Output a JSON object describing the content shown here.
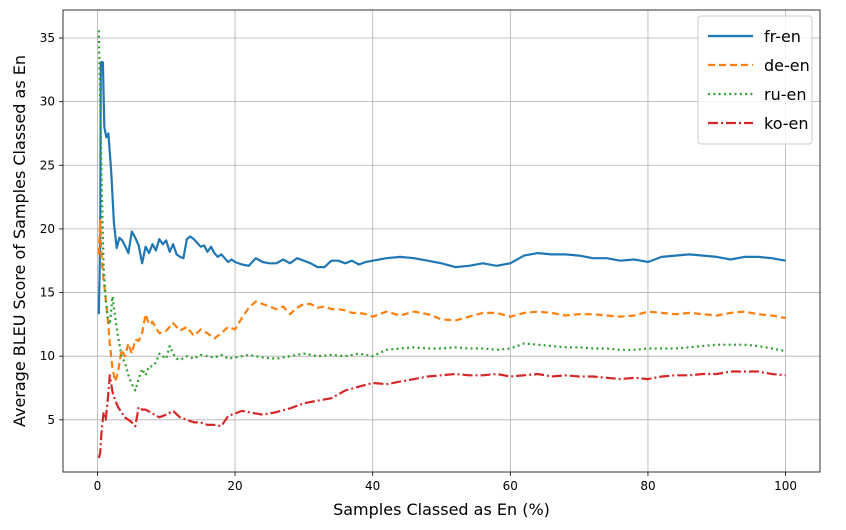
{
  "chart_data": {
    "type": "line",
    "title": "",
    "xlabel": "Samples Classed as En (%)",
    "ylabel": "Average BLEU Score of Samples Classed as En",
    "xlim": [
      -5,
      105
    ],
    "ylim": [
      0.9,
      37.2
    ],
    "xticks": [
      0,
      20,
      40,
      60,
      80,
      100
    ],
    "yticks": [
      5,
      10,
      15,
      20,
      25,
      30,
      35
    ],
    "grid": true,
    "legend_position": "top-right",
    "series": [
      {
        "name": "fr-en",
        "color": "#1f77b4",
        "dash": "solid",
        "points": [
          [
            0.2,
            13.3
          ],
          [
            0.4,
            19
          ],
          [
            0.5,
            33.1
          ],
          [
            0.8,
            33.1
          ],
          [
            1,
            28
          ],
          [
            1.3,
            27.2
          ],
          [
            1.6,
            27.5
          ],
          [
            2,
            24.5
          ],
          [
            2.4,
            20.5
          ],
          [
            2.8,
            18.5
          ],
          [
            3.2,
            19.3
          ],
          [
            3.6,
            19.1
          ],
          [
            4,
            18.7
          ],
          [
            4.5,
            18.1
          ],
          [
            5,
            19.8
          ],
          [
            5.5,
            19.3
          ],
          [
            6,
            18.7
          ],
          [
            6.5,
            17.3
          ],
          [
            7,
            18.6
          ],
          [
            7.5,
            18.1
          ],
          [
            8,
            18.8
          ],
          [
            8.5,
            18.3
          ],
          [
            9,
            19.2
          ],
          [
            9.5,
            18.8
          ],
          [
            10,
            19.1
          ],
          [
            10.5,
            18.2
          ],
          [
            11,
            18.8
          ],
          [
            11.5,
            18
          ],
          [
            12,
            17.8
          ],
          [
            12.5,
            17.7
          ],
          [
            13,
            19.2
          ],
          [
            13.5,
            19.4
          ],
          [
            14,
            19.2
          ],
          [
            14.5,
            18.9
          ],
          [
            15,
            18.6
          ],
          [
            15.5,
            18.7
          ],
          [
            16,
            18.2
          ],
          [
            16.5,
            18.6
          ],
          [
            17,
            18.1
          ],
          [
            17.5,
            17.8
          ],
          [
            18,
            18
          ],
          [
            18.5,
            17.7
          ],
          [
            19,
            17.4
          ],
          [
            19.5,
            17.6
          ],
          [
            20,
            17.4
          ],
          [
            21,
            17.2
          ],
          [
            22,
            17.1
          ],
          [
            23,
            17.7
          ],
          [
            24,
            17.4
          ],
          [
            25,
            17.3
          ],
          [
            26,
            17.3
          ],
          [
            27,
            17.6
          ],
          [
            28,
            17.3
          ],
          [
            29,
            17.7
          ],
          [
            30,
            17.5
          ],
          [
            31,
            17.3
          ],
          [
            32,
            17
          ],
          [
            33,
            17
          ],
          [
            34,
            17.5
          ],
          [
            35,
            17.5
          ],
          [
            36,
            17.3
          ],
          [
            37,
            17.5
          ],
          [
            38,
            17.2
          ],
          [
            39,
            17.4
          ],
          [
            40,
            17.5
          ],
          [
            42,
            17.7
          ],
          [
            44,
            17.8
          ],
          [
            46,
            17.7
          ],
          [
            48,
            17.5
          ],
          [
            50,
            17.3
          ],
          [
            52,
            17
          ],
          [
            54,
            17.1
          ],
          [
            56,
            17.3
          ],
          [
            58,
            17.1
          ],
          [
            60,
            17.3
          ],
          [
            62,
            17.9
          ],
          [
            64,
            18.1
          ],
          [
            66,
            18
          ],
          [
            68,
            18
          ],
          [
            70,
            17.9
          ],
          [
            72,
            17.7
          ],
          [
            74,
            17.7
          ],
          [
            76,
            17.5
          ],
          [
            78,
            17.6
          ],
          [
            80,
            17.4
          ],
          [
            82,
            17.8
          ],
          [
            84,
            17.9
          ],
          [
            86,
            18
          ],
          [
            88,
            17.9
          ],
          [
            90,
            17.8
          ],
          [
            92,
            17.6
          ],
          [
            94,
            17.8
          ],
          [
            96,
            17.8
          ],
          [
            98,
            17.7
          ],
          [
            100,
            17.5
          ]
        ]
      },
      {
        "name": "de-en",
        "color": "#ff7f0e",
        "dash": "dashed",
        "points": [
          [
            0.2,
            18
          ],
          [
            0.4,
            20.7
          ],
          [
            0.6,
            17.8
          ],
          [
            0.9,
            16
          ],
          [
            1.2,
            14.5
          ],
          [
            1.5,
            13
          ],
          [
            1.8,
            11
          ],
          [
            2.2,
            9
          ],
          [
            2.6,
            8
          ],
          [
            3,
            8.8
          ],
          [
            3.5,
            10.5
          ],
          [
            4,
            10
          ],
          [
            4.5,
            11
          ],
          [
            5,
            10.2
          ],
          [
            5.5,
            11.3
          ],
          [
            6,
            11.2
          ],
          [
            6.5,
            11.8
          ],
          [
            7,
            13.3
          ],
          [
            7.5,
            12.5
          ],
          [
            8,
            12.7
          ],
          [
            9,
            11.8
          ],
          [
            10,
            12
          ],
          [
            11,
            12.6
          ],
          [
            12,
            12
          ],
          [
            13,
            12.3
          ],
          [
            14,
            11.6
          ],
          [
            15,
            12.1
          ],
          [
            16,
            11.8
          ],
          [
            17,
            11.4
          ],
          [
            18,
            11.8
          ],
          [
            19,
            12.3
          ],
          [
            20,
            12.1
          ],
          [
            21,
            13
          ],
          [
            22,
            13.8
          ],
          [
            23,
            14.3
          ],
          [
            24,
            14.1
          ],
          [
            25,
            13.9
          ],
          [
            26,
            13.7
          ],
          [
            27,
            13.9
          ],
          [
            28,
            13.3
          ],
          [
            29,
            13.8
          ],
          [
            30,
            14.1
          ],
          [
            31,
            14.1
          ],
          [
            32,
            13.8
          ],
          [
            33,
            13.9
          ],
          [
            34,
            13.7
          ],
          [
            35,
            13.7
          ],
          [
            36,
            13.6
          ],
          [
            37,
            13.4
          ],
          [
            38,
            13.4
          ],
          [
            39,
            13.3
          ],
          [
            40,
            13.1
          ],
          [
            42,
            13.5
          ],
          [
            44,
            13.2
          ],
          [
            46,
            13.5
          ],
          [
            48,
            13.3
          ],
          [
            50,
            12.9
          ],
          [
            52,
            12.8
          ],
          [
            54,
            13.1
          ],
          [
            56,
            13.4
          ],
          [
            58,
            13.4
          ],
          [
            60,
            13.1
          ],
          [
            62,
            13.4
          ],
          [
            64,
            13.5
          ],
          [
            66,
            13.4
          ],
          [
            68,
            13.2
          ],
          [
            70,
            13.3
          ],
          [
            72,
            13.3
          ],
          [
            74,
            13.2
          ],
          [
            76,
            13.1
          ],
          [
            78,
            13.2
          ],
          [
            80,
            13.5
          ],
          [
            82,
            13.4
          ],
          [
            84,
            13.3
          ],
          [
            86,
            13.4
          ],
          [
            88,
            13.3
          ],
          [
            90,
            13.2
          ],
          [
            92,
            13.4
          ],
          [
            94,
            13.5
          ],
          [
            96,
            13.3
          ],
          [
            98,
            13.2
          ],
          [
            100,
            13
          ]
        ]
      },
      {
        "name": "ru-en",
        "color": "#2ca02c",
        "dash": "dotted",
        "points": [
          [
            0.2,
            35.6
          ],
          [
            0.4,
            30
          ],
          [
            0.6,
            24
          ],
          [
            0.9,
            17
          ],
          [
            1.2,
            14.5
          ],
          [
            1.5,
            13
          ],
          [
            1.8,
            12.5
          ],
          [
            2.2,
            14.7
          ],
          [
            2.6,
            13
          ],
          [
            3,
            11.5
          ],
          [
            3.5,
            10
          ],
          [
            4,
            9.5
          ],
          [
            4.5,
            8.5
          ],
          [
            5,
            7.8
          ],
          [
            5.5,
            7.3
          ],
          [
            6,
            8.2
          ],
          [
            6.5,
            9
          ],
          [
            7,
            8.5
          ],
          [
            7.5,
            9.2
          ],
          [
            8,
            9.2
          ],
          [
            8.5,
            9.5
          ],
          [
            9,
            10.2
          ],
          [
            9.5,
            10
          ],
          [
            10,
            9.8
          ],
          [
            10.5,
            10.8
          ],
          [
            11,
            10.2
          ],
          [
            11.5,
            9.8
          ],
          [
            12,
            9.7
          ],
          [
            13,
            10
          ],
          [
            14,
            9.8
          ],
          [
            15,
            10.1
          ],
          [
            16,
            10
          ],
          [
            17,
            9.9
          ],
          [
            18,
            10.1
          ],
          [
            19,
            9.8
          ],
          [
            20,
            9.9
          ],
          [
            22,
            10.1
          ],
          [
            24,
            9.9
          ],
          [
            26,
            9.8
          ],
          [
            28,
            10
          ],
          [
            30,
            10.2
          ],
          [
            32,
            10
          ],
          [
            34,
            10.1
          ],
          [
            36,
            10
          ],
          [
            38,
            10.2
          ],
          [
            40,
            10
          ],
          [
            42,
            10.5
          ],
          [
            44,
            10.6
          ],
          [
            46,
            10.7
          ],
          [
            48,
            10.6
          ],
          [
            50,
            10.6
          ],
          [
            52,
            10.7
          ],
          [
            54,
            10.6
          ],
          [
            56,
            10.6
          ],
          [
            58,
            10.5
          ],
          [
            60,
            10.6
          ],
          [
            62,
            11
          ],
          [
            64,
            10.9
          ],
          [
            66,
            10.8
          ],
          [
            68,
            10.7
          ],
          [
            70,
            10.7
          ],
          [
            72,
            10.6
          ],
          [
            74,
            10.6
          ],
          [
            76,
            10.5
          ],
          [
            78,
            10.5
          ],
          [
            80,
            10.6
          ],
          [
            82,
            10.6
          ],
          [
            84,
            10.6
          ],
          [
            86,
            10.7
          ],
          [
            88,
            10.8
          ],
          [
            90,
            10.9
          ],
          [
            92,
            10.9
          ],
          [
            94,
            10.9
          ],
          [
            96,
            10.8
          ],
          [
            98,
            10.6
          ],
          [
            100,
            10.4
          ]
        ]
      },
      {
        "name": "ko-en",
        "color": "#d62728",
        "dash": "dashdot",
        "points": [
          [
            0.2,
            2
          ],
          [
            0.4,
            2.4
          ],
          [
            0.6,
            4
          ],
          [
            0.9,
            5.6
          ],
          [
            1.2,
            5
          ],
          [
            1.5,
            6.5
          ],
          [
            1.8,
            8.5
          ],
          [
            2.2,
            7.2
          ],
          [
            2.6,
            6.5
          ],
          [
            3,
            6
          ],
          [
            3.5,
            5.6
          ],
          [
            4,
            5.2
          ],
          [
            4.5,
            5
          ],
          [
            5,
            4.8
          ],
          [
            5.5,
            4.5
          ],
          [
            6,
            6
          ],
          [
            6.5,
            5.8
          ],
          [
            7,
            5.8
          ],
          [
            8,
            5.5
          ],
          [
            9,
            5.2
          ],
          [
            10,
            5.4
          ],
          [
            11,
            5.7
          ],
          [
            12,
            5.2
          ],
          [
            13,
            5
          ],
          [
            14,
            4.8
          ],
          [
            15,
            4.8
          ],
          [
            16,
            4.6
          ],
          [
            17,
            4.6
          ],
          [
            18,
            4.5
          ],
          [
            19,
            5.3
          ],
          [
            20,
            5.5
          ],
          [
            21,
            5.7
          ],
          [
            22,
            5.6
          ],
          [
            24,
            5.4
          ],
          [
            26,
            5.6
          ],
          [
            28,
            5.9
          ],
          [
            30,
            6.3
          ],
          [
            32,
            6.5
          ],
          [
            34,
            6.7
          ],
          [
            36,
            7.3
          ],
          [
            38,
            7.6
          ],
          [
            40,
            7.9
          ],
          [
            42,
            7.8
          ],
          [
            44,
            8
          ],
          [
            46,
            8.2
          ],
          [
            48,
            8.4
          ],
          [
            50,
            8.5
          ],
          [
            52,
            8.6
          ],
          [
            54,
            8.5
          ],
          [
            56,
            8.5
          ],
          [
            58,
            8.6
          ],
          [
            60,
            8.4
          ],
          [
            62,
            8.5
          ],
          [
            64,
            8.6
          ],
          [
            66,
            8.4
          ],
          [
            68,
            8.5
          ],
          [
            70,
            8.4
          ],
          [
            72,
            8.4
          ],
          [
            74,
            8.3
          ],
          [
            76,
            8.2
          ],
          [
            78,
            8.3
          ],
          [
            80,
            8.2
          ],
          [
            82,
            8.4
          ],
          [
            84,
            8.5
          ],
          [
            86,
            8.5
          ],
          [
            88,
            8.6
          ],
          [
            90,
            8.6
          ],
          [
            92,
            8.8
          ],
          [
            94,
            8.8
          ],
          [
            96,
            8.8
          ],
          [
            98,
            8.6
          ],
          [
            100,
            8.5
          ]
        ]
      }
    ]
  }
}
